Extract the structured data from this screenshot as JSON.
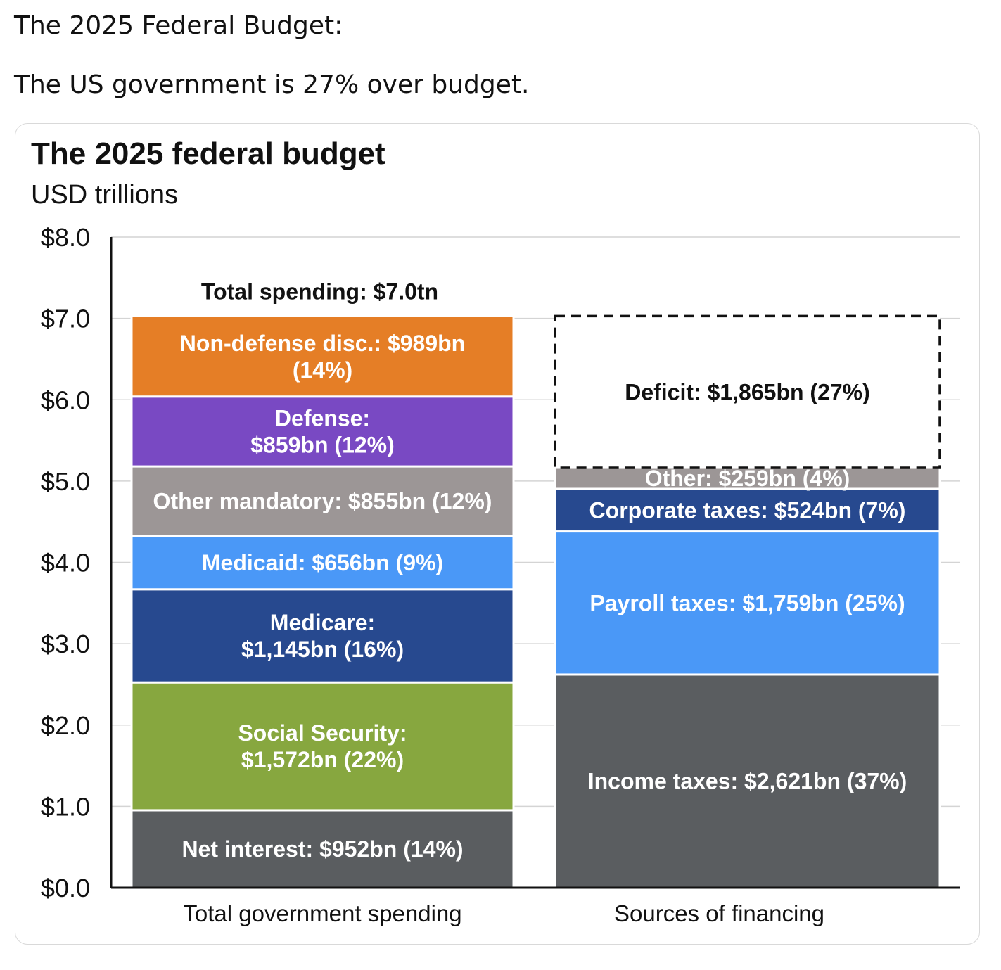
{
  "post": {
    "line1": "The 2025 Federal Budget:",
    "line2": "The US government is 27% over budget."
  },
  "chart_data": {
    "type": "bar",
    "stacked": true,
    "title": "The 2025 federal budget",
    "subtitle": "USD trillions",
    "ylim": [
      0,
      8
    ],
    "y_ticks": [
      "$0.0",
      "$1.0",
      "$2.0",
      "$3.0",
      "$4.0",
      "$5.0",
      "$6.0",
      "$7.0",
      "$8.0"
    ],
    "grid": true,
    "categories": [
      "Total government spending",
      "Sources of financing"
    ],
    "total_label": "Total spending: $7.0tn",
    "stacks": [
      {
        "category": "Total government spending",
        "segments": [
          {
            "name": "Net interest",
            "value": 0.952,
            "label": [
              "Net interest: $952bn (14%)"
            ],
            "color": "#5a5d60"
          },
          {
            "name": "Social Security",
            "value": 1.572,
            "label": [
              "Social Security:",
              "$1,572bn (22%)"
            ],
            "color": "#87a73f"
          },
          {
            "name": "Medicare",
            "value": 1.145,
            "label": [
              "Medicare:",
              "$1,145bn (16%)"
            ],
            "color": "#27498f"
          },
          {
            "name": "Medicaid",
            "value": 0.656,
            "label": [
              "Medicaid: $656bn (9%)"
            ],
            "color": "#4a98f7"
          },
          {
            "name": "Other mandatory",
            "value": 0.855,
            "label": [
              "Other mandatory: $855bn (12%)"
            ],
            "color": "#9c9696"
          },
          {
            "name": "Defense",
            "value": 0.859,
            "label": [
              "Defense:",
              "$859bn (12%)"
            ],
            "color": "#7949c3"
          },
          {
            "name": "Non-defense disc.",
            "value": 0.989,
            "label": [
              "Non-defense disc.: $989bn",
              "(14%)"
            ],
            "color": "#e57e26"
          }
        ]
      },
      {
        "category": "Sources of financing",
        "segments": [
          {
            "name": "Income taxes",
            "value": 2.621,
            "label": [
              "Income taxes: $2,621bn (37%)"
            ],
            "color": "#5a5d60"
          },
          {
            "name": "Payroll taxes",
            "value": 1.759,
            "label": [
              "Payroll taxes: $1,759bn (25%)"
            ],
            "color": "#4a98f7"
          },
          {
            "name": "Corporate taxes",
            "value": 0.524,
            "label": [
              "Corporate taxes: $524bn (7%)"
            ],
            "color": "#27498f"
          },
          {
            "name": "Other",
            "value": 0.259,
            "label": [
              "Other: $259bn (4%)"
            ],
            "color": "#9c9696"
          },
          {
            "name": "Deficit",
            "value": 1.865,
            "label": [
              "Deficit: $1,865bn (27%)"
            ],
            "color": "#ffffff",
            "dashed": true
          }
        ]
      }
    ]
  }
}
